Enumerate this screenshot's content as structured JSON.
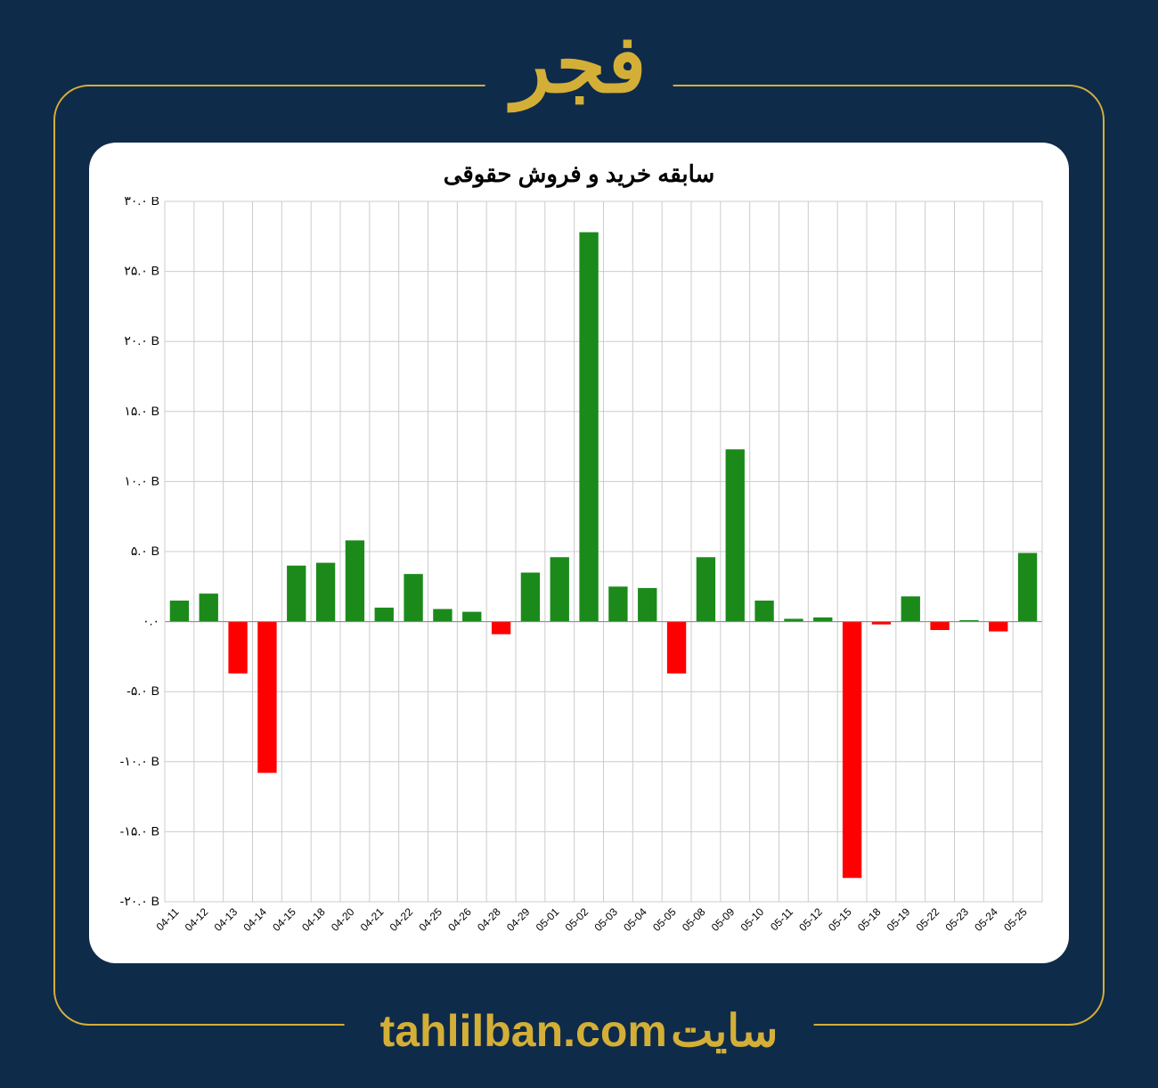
{
  "header": {
    "symbol": "فجر"
  },
  "footer": {
    "site_word": "سایت",
    "site_url": "tahlilban.com"
  },
  "chart": {
    "type": "bar",
    "title": "سابقه خرید و فروش حقوقی",
    "title_fontsize": 26,
    "title_color": "#000000",
    "background_color": "#ffffff",
    "grid_color": "#cccccc",
    "positive_color": "#1b8a1b",
    "negative_color": "#ff0000",
    "ylim": [
      -20,
      30
    ],
    "ytick_step": 5,
    "yticks": [
      -20,
      -15,
      -10,
      -5,
      0,
      5,
      10,
      15,
      20,
      25,
      30
    ],
    "ytick_labels": [
      "-۲۰.۰ B",
      "-۱۵.۰ B",
      "-۱۰.۰ B",
      "-۵.۰ B",
      "۰.۰",
      "۵.۰ B",
      "۱۰.۰ B",
      "۱۵.۰ B",
      "۲۰.۰ B",
      "۲۵.۰ B",
      "۳۰.۰ B"
    ],
    "categories": [
      "04-11",
      "04-12",
      "04-13",
      "04-14",
      "04-15",
      "04-18",
      "04-20",
      "04-21",
      "04-22",
      "04-25",
      "04-26",
      "04-28",
      "04-29",
      "05-01",
      "05-02",
      "05-03",
      "05-04",
      "05-05",
      "05-08",
      "05-09",
      "05-10",
      "05-11",
      "05-12",
      "05-15",
      "05-18",
      "05-19",
      "05-22",
      "05-23",
      "05-24",
      "05-25"
    ],
    "values": [
      1.5,
      2.0,
      -3.7,
      -10.8,
      4.0,
      4.2,
      5.8,
      1.0,
      3.4,
      0.9,
      0.7,
      -0.9,
      3.5,
      4.6,
      27.8,
      2.5,
      2.4,
      -3.7,
      4.6,
      12.3,
      1.5,
      0.2,
      0.3,
      -18.3,
      -0.2,
      1.8,
      -0.6,
      0.1,
      -0.7,
      4.9
    ],
    "bar_width": 0.65,
    "axis_label_fontsize": 14,
    "xaxis_label_fontsize": 12,
    "xaxis_label_rotation": -45
  },
  "brand": {
    "accent_color": "#d4af37",
    "page_background": "#0f2b4a",
    "frame_border_radius": 40
  }
}
